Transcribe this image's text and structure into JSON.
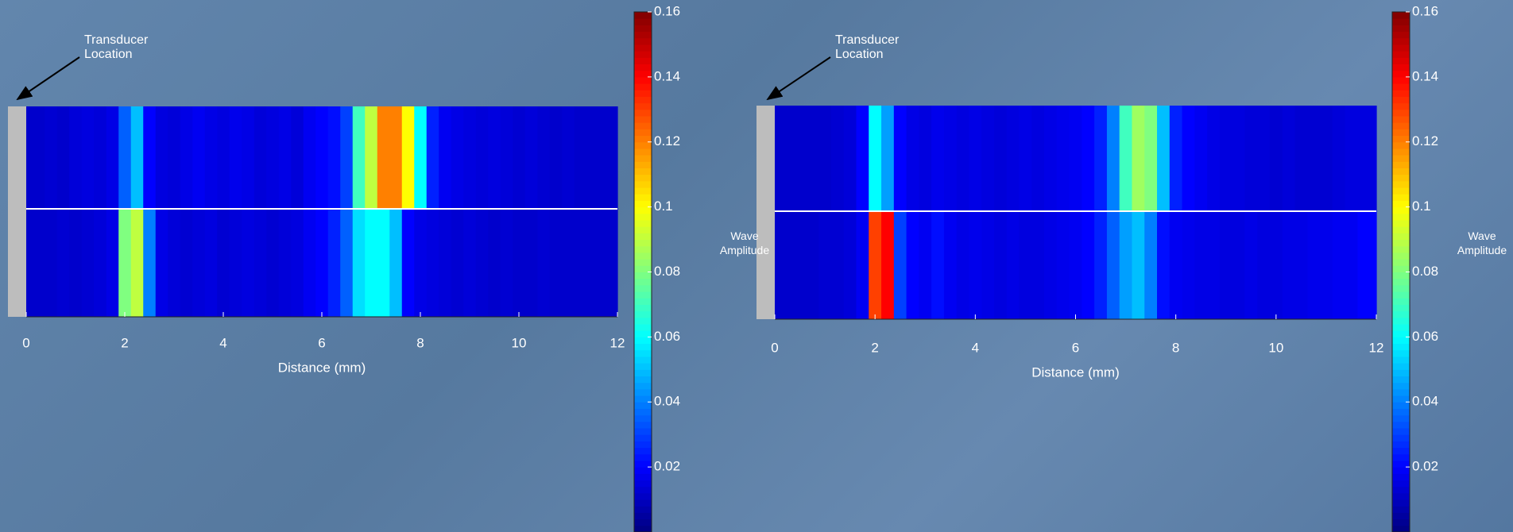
{
  "chart_data": [
    {
      "type": "heatmap",
      "annotation": "Transducer Location",
      "xlabel": "Distance (mm)",
      "colorbar_label": "Wave Amplitude",
      "colormap": "jet",
      "xlim": [
        0,
        12
      ],
      "xticks": [
        0,
        2,
        4,
        6,
        8,
        10,
        12
      ],
      "clim": [
        0,
        0.16
      ],
      "cticks": [
        0.02,
        0.04,
        0.06,
        0.08,
        0.1,
        0.12,
        0.14,
        0.16
      ],
      "x": [
        0,
        0.25,
        0.5,
        0.75,
        1,
        1.25,
        1.5,
        1.75,
        2,
        2.25,
        2.5,
        2.75,
        3,
        3.25,
        3.5,
        3.75,
        4,
        4.25,
        4.5,
        4.75,
        5,
        5.25,
        5.5,
        5.75,
        6,
        6.25,
        6.5,
        6.75,
        7,
        7.25,
        7.5,
        7.75,
        8,
        8.25,
        8.5,
        8.75,
        9,
        9.25,
        9.5,
        9.75,
        10,
        10.25,
        10.5,
        10.75,
        11,
        11.25,
        11.5,
        11.75,
        12
      ],
      "z": [
        [
          0.012,
          0.012,
          0.013,
          0.012,
          0.014,
          0.015,
          0.014,
          0.016,
          0.035,
          0.05,
          0.02,
          0.015,
          0.014,
          0.016,
          0.018,
          0.016,
          0.015,
          0.017,
          0.016,
          0.014,
          0.015,
          0.016,
          0.014,
          0.018,
          0.02,
          0.022,
          0.03,
          0.07,
          0.09,
          0.12,
          0.12,
          0.1,
          0.06,
          0.025,
          0.018,
          0.016,
          0.015,
          0.014,
          0.015,
          0.014,
          0.013,
          0.014,
          0.013,
          0.012,
          0.013,
          0.012,
          0.012,
          0.012,
          0.012
        ],
        [
          0.012,
          0.012,
          0.012,
          0.013,
          0.012,
          0.013,
          0.014,
          0.016,
          0.08,
          0.09,
          0.04,
          0.016,
          0.014,
          0.013,
          0.014,
          0.015,
          0.013,
          0.014,
          0.015,
          0.014,
          0.013,
          0.014,
          0.015,
          0.018,
          0.02,
          0.025,
          0.035,
          0.055,
          0.06,
          0.06,
          0.05,
          0.02,
          0.016,
          0.015,
          0.014,
          0.013,
          0.014,
          0.013,
          0.012,
          0.013,
          0.012,
          0.012,
          0.013,
          0.012,
          0.012,
          0.012,
          0.012,
          0.012,
          0.012
        ]
      ]
    },
    {
      "type": "heatmap",
      "annotation": "Transducer Location",
      "xlabel": "Distance (mm)",
      "colorbar_label": "Wave Amplitude",
      "colormap": "jet",
      "xlim": [
        0,
        12
      ],
      "xticks": [
        0,
        2,
        4,
        6,
        8,
        10,
        12
      ],
      "clim": [
        0,
        0.16
      ],
      "cticks": [
        0.02,
        0.04,
        0.06,
        0.08,
        0.1,
        0.12,
        0.14,
        0.16
      ],
      "x": [
        0,
        0.25,
        0.5,
        0.75,
        1,
        1.25,
        1.5,
        1.75,
        2,
        2.25,
        2.5,
        2.75,
        3,
        3.25,
        3.5,
        3.75,
        4,
        4.25,
        4.5,
        4.75,
        5,
        5.25,
        5.5,
        5.75,
        6,
        6.25,
        6.5,
        6.75,
        7,
        7.25,
        7.5,
        7.75,
        8,
        8.25,
        8.5,
        8.75,
        9,
        9.25,
        9.5,
        9.75,
        10,
        10.25,
        10.5,
        10.75,
        11,
        11.25,
        11.5,
        11.75,
        12
      ],
      "z": [
        [
          0.012,
          0.012,
          0.012,
          0.012,
          0.012,
          0.013,
          0.014,
          0.02,
          0.06,
          0.045,
          0.02,
          0.016,
          0.015,
          0.017,
          0.016,
          0.015,
          0.016,
          0.015,
          0.014,
          0.015,
          0.016,
          0.015,
          0.016,
          0.017,
          0.018,
          0.02,
          0.025,
          0.04,
          0.07,
          0.085,
          0.08,
          0.05,
          0.025,
          0.02,
          0.018,
          0.016,
          0.015,
          0.015,
          0.014,
          0.014,
          0.013,
          0.014,
          0.013,
          0.013,
          0.013,
          0.014,
          0.015,
          0.015,
          0.015
        ],
        [
          0.012,
          0.012,
          0.012,
          0.012,
          0.013,
          0.013,
          0.014,
          0.018,
          0.13,
          0.14,
          0.03,
          0.02,
          0.018,
          0.022,
          0.018,
          0.016,
          0.017,
          0.016,
          0.015,
          0.016,
          0.015,
          0.015,
          0.016,
          0.017,
          0.018,
          0.02,
          0.025,
          0.035,
          0.045,
          0.05,
          0.04,
          0.022,
          0.018,
          0.017,
          0.016,
          0.016,
          0.015,
          0.015,
          0.016,
          0.015,
          0.015,
          0.016,
          0.016,
          0.017,
          0.017,
          0.018,
          0.018,
          0.02,
          0.02
        ]
      ]
    }
  ]
}
